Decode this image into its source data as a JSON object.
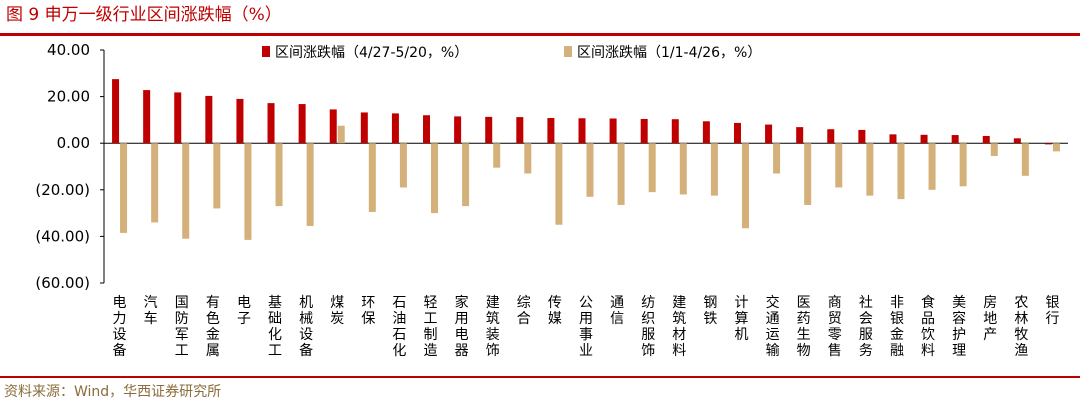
{
  "title": "图 9 申万一级行业区间涨跌幅（%）",
  "source": "资料来源：Wind，华西证券研究所",
  "colors": {
    "series1": "#c00000",
    "series2": "#d4b07a",
    "accent": "#c00000"
  },
  "chart_data": {
    "type": "bar",
    "ylim": [
      -60,
      40
    ],
    "yticks": [
      40,
      20,
      0,
      -20,
      -40,
      -60
    ],
    "ytick_labels": [
      "40.00",
      "20.00",
      "0.00",
      "(20.00)",
      "(40.00)",
      "(60.00)"
    ],
    "grid": false,
    "legend_position": "top",
    "categories": [
      "电力设备",
      "汽车",
      "国防军工",
      "有色金属",
      "电子",
      "基础化工",
      "机械设备",
      "煤炭",
      "环保",
      "石油石化",
      "轻工制造",
      "家用电器",
      "建筑装饰",
      "综合",
      "传媒",
      "公用事业",
      "通信",
      "纺织服饰",
      "建筑材料",
      "钢铁",
      "计算机",
      "交通运输",
      "医药生物",
      "商贸零售",
      "社会服务",
      "非银金融",
      "食品饮料",
      "美容护理",
      "房地产",
      "农林牧渔",
      "银行"
    ],
    "series": [
      {
        "name": "区间涨跌幅（4/27-5/20，%）",
        "values": [
          27.5,
          22.8,
          21.8,
          20.3,
          19.0,
          17.2,
          16.8,
          14.5,
          13.2,
          12.8,
          12.0,
          11.5,
          11.3,
          11.2,
          10.8,
          10.7,
          10.6,
          10.4,
          10.3,
          9.4,
          8.7,
          8.0,
          6.9,
          6.0,
          5.7,
          3.8,
          3.6,
          3.5,
          3.1,
          2.1,
          -0.5
        ]
      },
      {
        "name": "区间涨跌幅（1/1-4/26，%）",
        "values": [
          -38.5,
          -34.0,
          -41.0,
          -28.0,
          -41.5,
          -27.0,
          -35.5,
          7.5,
          -29.5,
          -19.0,
          -30.0,
          -27.0,
          -10.5,
          -13.0,
          -35.0,
          -23.0,
          -26.5,
          -21.0,
          -22.0,
          -22.5,
          -36.5,
          -13.0,
          -26.5,
          -19.0,
          -22.5,
          -24.0,
          -20.0,
          -18.5,
          -5.5,
          -14.0,
          -3.5
        ]
      }
    ]
  }
}
